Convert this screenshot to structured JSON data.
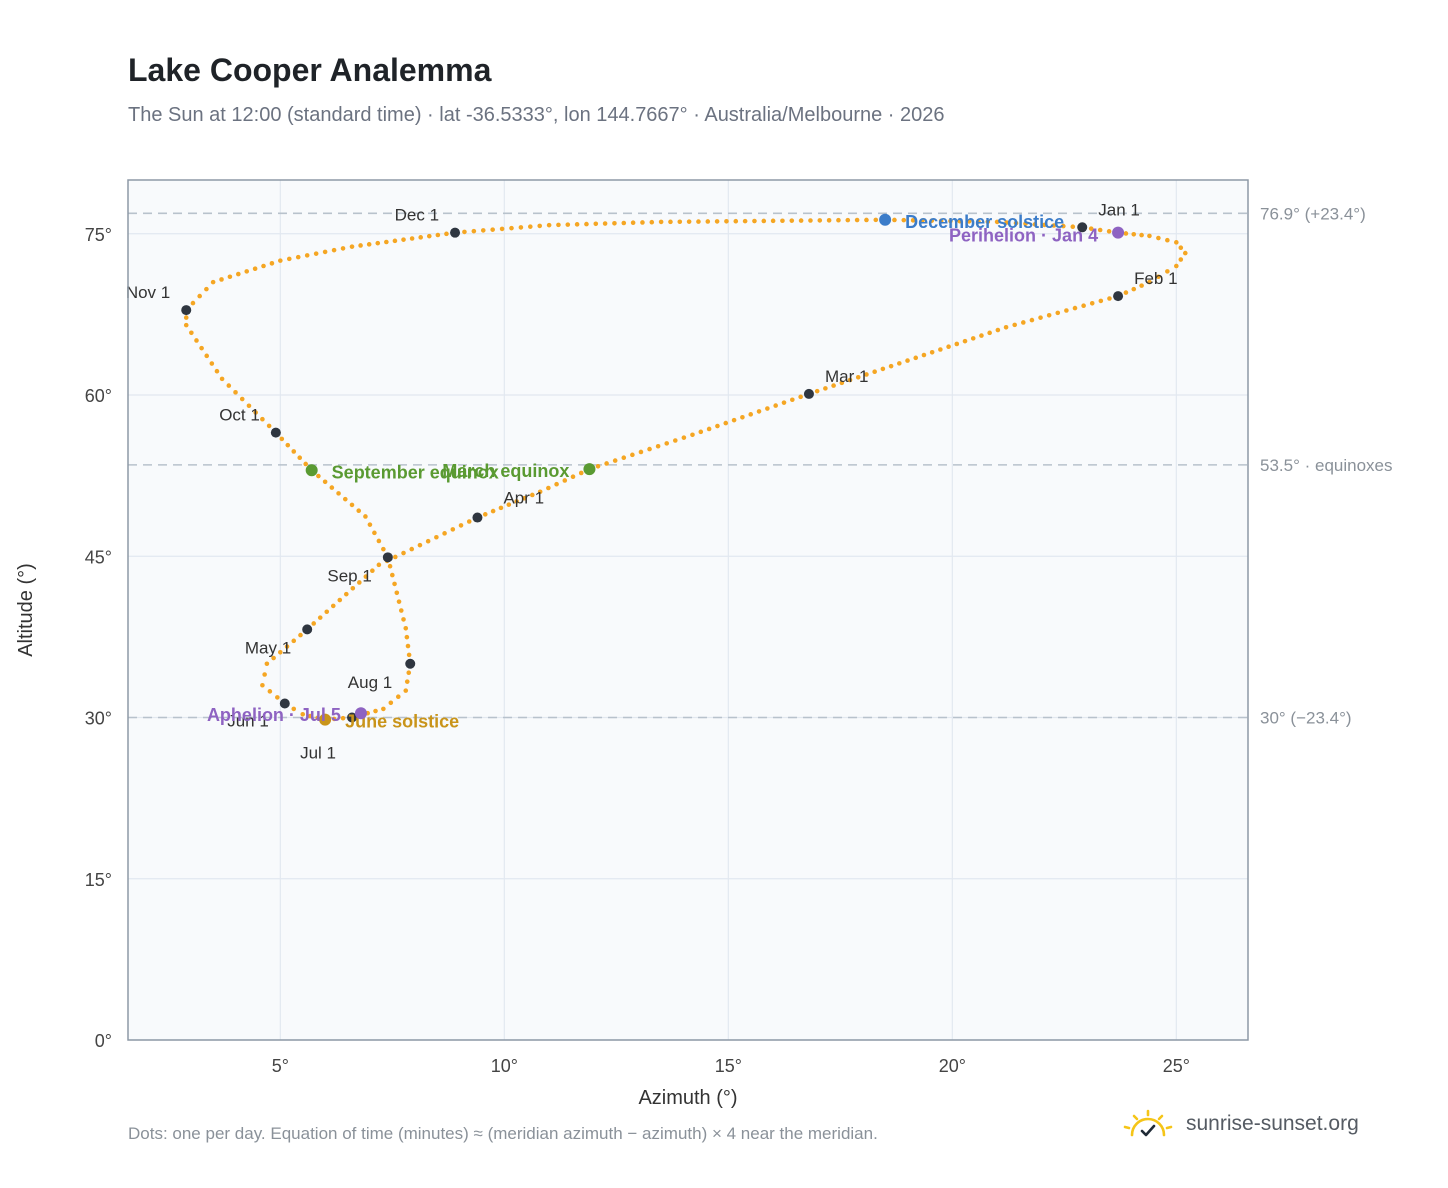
{
  "title": "Lake Cooper Analemma",
  "subtitle": "The Sun at 12:00 (standard time) · lat -36.5333°, lon 144.7667° · Australia/Melbourne · 2026",
  "footnote": "Dots: one per day. Equation of time (minutes) ≈ (meridian azimuth − azimuth) × 4 near the meridian.",
  "brand": {
    "name": "sunrise-sunset.org",
    "icon": "sun-check-icon"
  },
  "colors": {
    "curve": "#f5a623",
    "month_marker": "#2f3640",
    "december_solstice": "#3b7cc9",
    "june_solstice": "#c9941a",
    "equinox": "#5a9a32",
    "apsis": "#8e63c2",
    "plot_bg": "#f8fafc",
    "grid": "#e2e8f0",
    "reference_line": "#b8c2cc",
    "frame": "#8d99a6"
  },
  "chart_data": {
    "type": "scatter",
    "title": "Lake Cooper Analemma",
    "xlabel": "Azimuth (°)",
    "ylabel": "Altitude (°)",
    "xlim": [
      1.6,
      26.6
    ],
    "ylim": [
      0,
      80
    ],
    "xticks": [
      5,
      10,
      15,
      20,
      25
    ],
    "xtick_labels": [
      "5°",
      "10°",
      "15°",
      "20°",
      "25°"
    ],
    "yticks": [
      0,
      15,
      30,
      45,
      60,
      75
    ],
    "ytick_labels": [
      "0°",
      "15°",
      "30°",
      "45°",
      "60°",
      "75°"
    ],
    "grid": true,
    "reference_lines": [
      {
        "y": 76.9,
        "label": "76.9° (+23.4°)"
      },
      {
        "y": 53.5,
        "label": "53.5° · equinoxes"
      },
      {
        "y": 30.0,
        "label": "30° (−23.4°)"
      }
    ],
    "month_markers": [
      {
        "label": "Jan 1",
        "x": 22.9,
        "y": 75.6
      },
      {
        "label": "Feb 1",
        "x": 23.7,
        "y": 69.2
      },
      {
        "label": "Mar 1",
        "x": 16.8,
        "y": 60.1
      },
      {
        "label": "Apr 1",
        "x": 9.4,
        "y": 48.6
      },
      {
        "label": "May 1",
        "x": 5.6,
        "y": 38.2
      },
      {
        "label": "Jun 1",
        "x": 5.1,
        "y": 31.3
      },
      {
        "label": "Jul 1",
        "x": 6.6,
        "y": 30.0
      },
      {
        "label": "Aug 1",
        "x": 7.9,
        "y": 35.0
      },
      {
        "label": "Sep 1",
        "x": 7.4,
        "y": 44.9
      },
      {
        "label": "Oct 1",
        "x": 4.9,
        "y": 56.5
      },
      {
        "label": "Nov 1",
        "x": 2.9,
        "y": 67.9
      },
      {
        "label": "Dec 1",
        "x": 8.9,
        "y": 75.1
      }
    ],
    "events": [
      {
        "label": "December solstice",
        "x": 18.5,
        "y": 76.3,
        "kind": "december_solstice"
      },
      {
        "label": "Perihelion · Jan 4",
        "x": 23.7,
        "y": 75.1,
        "kind": "apsis"
      },
      {
        "label": "March equinox",
        "x": 11.9,
        "y": 53.1,
        "kind": "equinox"
      },
      {
        "label": "September equinox",
        "x": 5.7,
        "y": 53.0,
        "kind": "equinox"
      },
      {
        "label": "June solstice",
        "x": 6.0,
        "y": 29.8,
        "kind": "june_solstice"
      },
      {
        "label": "Aphelion · Jul 5",
        "x": 6.8,
        "y": 30.4,
        "kind": "apsis"
      }
    ],
    "curve_path": [
      [
        22.9,
        75.6
      ],
      [
        23.7,
        75.1
      ],
      [
        24.4,
        74.8
      ],
      [
        25.0,
        74.2
      ],
      [
        25.2,
        73.2
      ],
      [
        25.0,
        72.0
      ],
      [
        24.4,
        70.5
      ],
      [
        23.7,
        69.2
      ],
      [
        21.2,
        66.3
      ],
      [
        19.0,
        63.2
      ],
      [
        16.8,
        60.1
      ],
      [
        14.2,
        56.3
      ],
      [
        11.9,
        53.1
      ],
      [
        10.8,
        51.0
      ],
      [
        9.4,
        48.6
      ],
      [
        7.2,
        44.2
      ],
      [
        5.6,
        38.2
      ],
      [
        4.7,
        35.0
      ],
      [
        4.6,
        33.0
      ],
      [
        5.1,
        31.3
      ],
      [
        5.5,
        30.3
      ],
      [
        6.0,
        29.8
      ],
      [
        6.6,
        30.0
      ],
      [
        7.3,
        30.8
      ],
      [
        7.8,
        32.5
      ],
      [
        7.9,
        35.0
      ],
      [
        7.8,
        38.3
      ],
      [
        7.4,
        44.9
      ],
      [
        6.9,
        48.7
      ],
      [
        5.7,
        53.0
      ],
      [
        4.9,
        56.5
      ],
      [
        3.7,
        61.5
      ],
      [
        2.9,
        66.5
      ],
      [
        2.9,
        67.9
      ],
      [
        3.5,
        70.5
      ],
      [
        5.0,
        72.5
      ],
      [
        6.6,
        73.8
      ],
      [
        8.9,
        75.1
      ],
      [
        11.0,
        75.8
      ],
      [
        13.5,
        76.1
      ],
      [
        16.0,
        76.2
      ],
      [
        18.5,
        76.3
      ],
      [
        21.0,
        76.1
      ],
      [
        22.9,
        75.6
      ]
    ]
  }
}
